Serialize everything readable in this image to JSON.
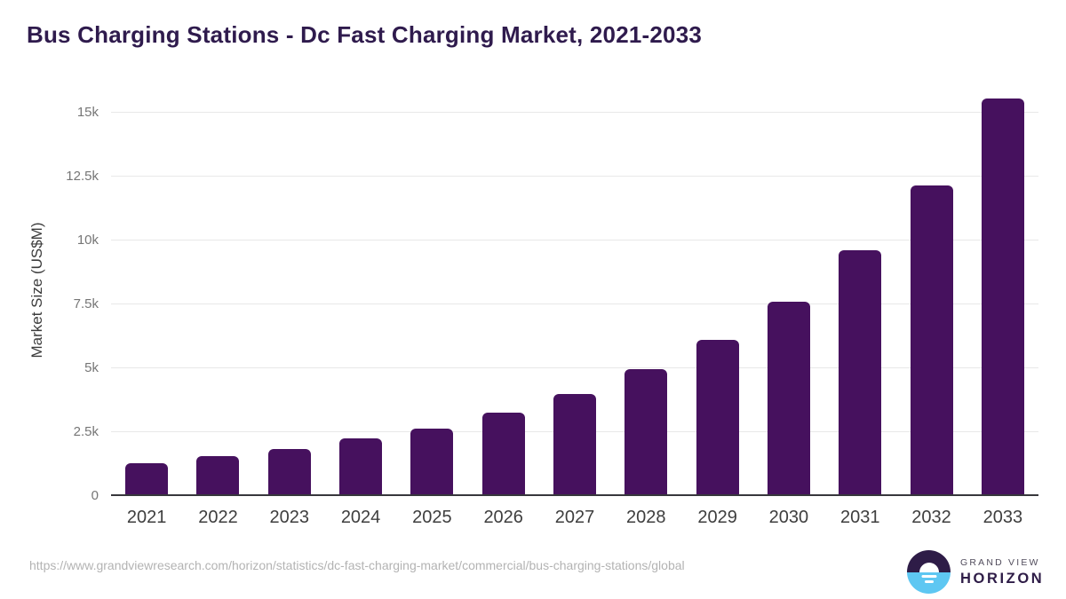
{
  "header": {
    "title": "Bus Charging Stations - Dc Fast Charging Market, 2021-2033"
  },
  "chart_data": {
    "type": "bar",
    "title": "Bus Charging Stations - Dc Fast Charging Market, 2021-2033",
    "categories": [
      "2021",
      "2022",
      "2023",
      "2024",
      "2025",
      "2026",
      "2027",
      "2028",
      "2029",
      "2030",
      "2031",
      "2032",
      "2033"
    ],
    "values": [
      1300,
      1550,
      1850,
      2250,
      2650,
      3250,
      4000,
      4950,
      6100,
      7600,
      9600,
      12150,
      15550
    ],
    "xlabel": "",
    "ylabel": "Market Size (US$M)",
    "ylim": [
      0,
      16100
    ],
    "yticks": [
      {
        "value": 0,
        "label": "0"
      },
      {
        "value": 2500,
        "label": "2.5k"
      },
      {
        "value": 5000,
        "label": "5k"
      },
      {
        "value": 7500,
        "label": "7.5k"
      },
      {
        "value": 10000,
        "label": "10k"
      },
      {
        "value": 12500,
        "label": "12.5k"
      },
      {
        "value": 15000,
        "label": "15k"
      }
    ],
    "grid": "horizontal",
    "legend": "none",
    "bar_color": "#46115e"
  },
  "footer": {
    "source_url": "https://www.grandviewresearch.com/horizon/statistics/dc-fast-charging-market/commercial/bus-charging-stations/global",
    "logo": {
      "top_text": "GRAND VIEW",
      "bottom_text": "HORIZON"
    }
  },
  "colors": {
    "title": "#2f1b4d",
    "bar": "#46115e",
    "gridline": "#e8e8e8",
    "axis_line": "#37373c",
    "y_tick_label": "#767676",
    "x_tick_label": "#3e3e3e",
    "axis_title": "#3b3b3b",
    "url_text": "#b3b3b3",
    "logo_purple": "#2e1c47",
    "logo_blue": "#5ec7f2"
  }
}
